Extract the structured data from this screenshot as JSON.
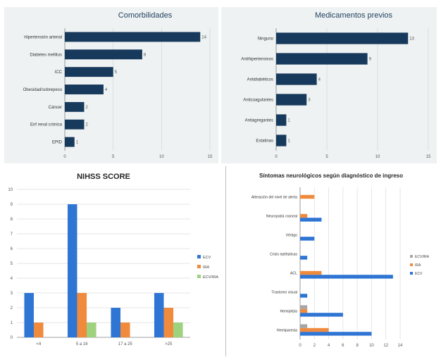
{
  "colors": {
    "navy": "#17395c",
    "blue": "#2e75d4",
    "orange": "#f08a3c",
    "green": "#9ed27e",
    "gray": "#a6a6a6"
  },
  "chart_data": [
    {
      "type": "bar",
      "orientation": "horizontal",
      "title": "Comorbilidades",
      "categories": [
        "Hipertensión arterial",
        "Diabetes mellitus",
        "ICC",
        "Obesidad/sobrepeso",
        "Cáncer",
        "Enf renal crónica",
        "EPID"
      ],
      "values": [
        14,
        8,
        5,
        4,
        2,
        2,
        1
      ],
      "value_labels": [
        "14",
        "8",
        "5",
        "4",
        "2",
        "2",
        "1"
      ],
      "xlim": [
        0,
        15
      ],
      "xticks": [
        "0",
        "5",
        "10",
        "15"
      ],
      "grid": true
    },
    {
      "type": "bar",
      "orientation": "horizontal",
      "title": "Medicamentos previos",
      "categories": [
        "Ninguno",
        "Antihipertensivos",
        "Antidiabéticos",
        "Anticoagulantes",
        "Antiagregantes",
        "Estatinas"
      ],
      "values": [
        13,
        9,
        4,
        3,
        1,
        1
      ],
      "value_labels": [
        "13",
        "9",
        "4",
        "3",
        "1",
        "1"
      ],
      "xlim": [
        0,
        15
      ],
      "xticks": [
        "0",
        "5",
        "10",
        "15"
      ],
      "grid": true
    },
    {
      "type": "bar",
      "orientation": "vertical",
      "title": "NIHSS SCORE",
      "categories": [
        "<4",
        "5 a 16",
        "17 a 25",
        ">25"
      ],
      "series": [
        {
          "name": "ECV",
          "values": [
            3,
            9,
            2,
            3
          ]
        },
        {
          "name": "IRA",
          "values": [
            1,
            3,
            1,
            2
          ]
        },
        {
          "name": "ECV/IRA",
          "values": [
            0,
            1,
            0,
            1
          ]
        }
      ],
      "ylim": [
        0,
        10
      ],
      "yticks": [
        "0",
        "1",
        "2",
        "3",
        "4",
        "5",
        "6",
        "7",
        "8",
        "9",
        "10"
      ],
      "legend": "right",
      "grid": true
    },
    {
      "type": "bar",
      "orientation": "horizontal",
      "title": "Síntomas neurológicos según diagnóstico de ingreso",
      "categories": [
        "Alteración del nivel de alerta",
        "Neuropatía craneal",
        "Vértigo",
        "Crisis epilépticas",
        "ACL",
        "Trastorno visual",
        "Hemiplejía",
        "Hemiparesia"
      ],
      "series": [
        {
          "name": "ECV/IRA",
          "values": [
            0,
            0,
            0,
            0,
            0,
            0,
            1,
            1
          ]
        },
        {
          "name": "IRA",
          "values": [
            2,
            1,
            0,
            0,
            3,
            0,
            1,
            4
          ]
        },
        {
          "name": "ECV",
          "values": [
            0,
            3,
            2,
            1,
            13,
            1,
            6,
            10
          ]
        }
      ],
      "xlim": [
        0,
        14
      ],
      "xticks": [
        "0",
        "2",
        "4",
        "6",
        "8",
        "10",
        "12",
        "14"
      ],
      "legend": "right",
      "grid": true
    }
  ]
}
